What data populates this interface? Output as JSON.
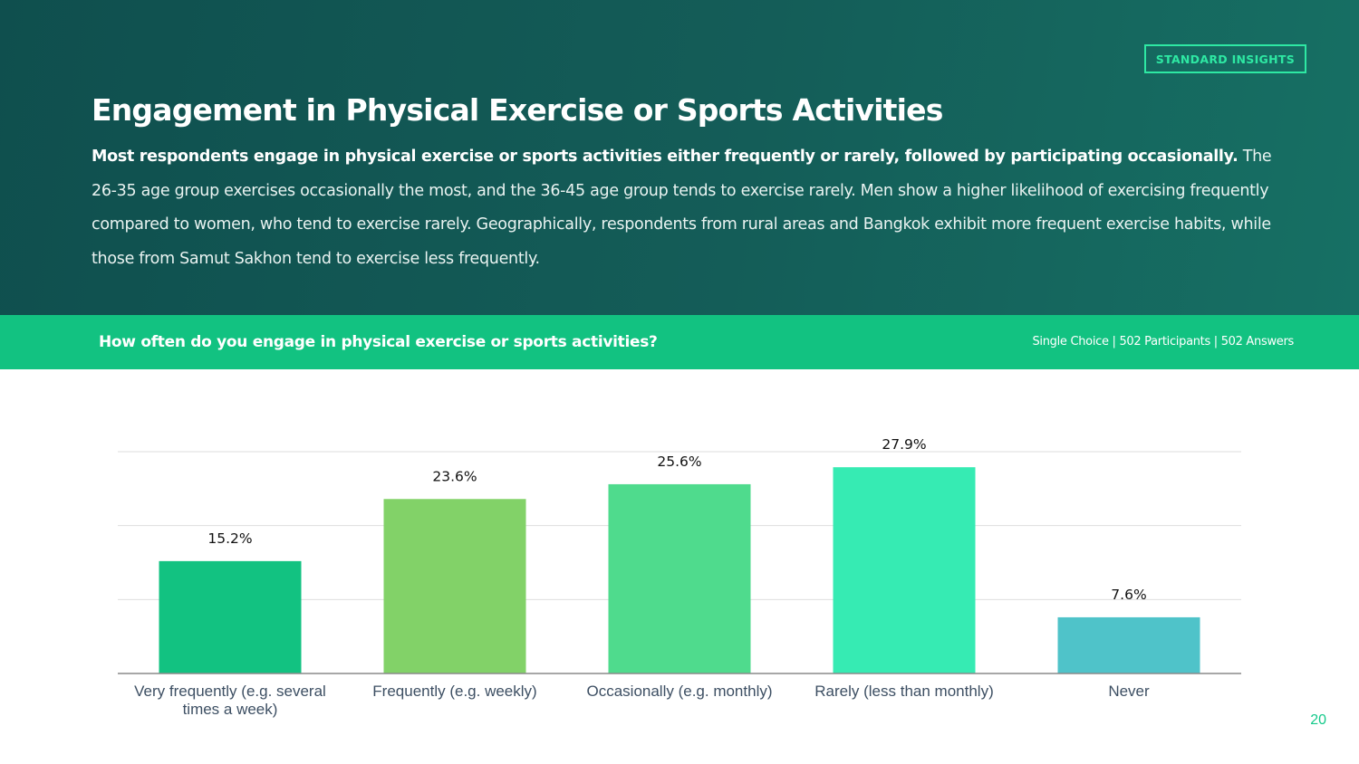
{
  "brand": "STANDARD INSIGHTS",
  "title": "Engagement in Physical Exercise or Sports Activities",
  "summary": {
    "lead": "Most respondents engage in physical exercise or sports activities either frequently or rarely, followed by participating occasionally.",
    "body": " The 26-35 age group exercises occasionally the most, and the 36-45 age group tends to exercise rarely. Men show a higher likelihood of exercising frequently compared to women, who tend to exercise rarely. Geographically, respondents from rural areas and Bangkok exhibit more frequent exercise habits, while those from Samut Sakhon tend to exercise less frequently."
  },
  "question": {
    "text": "How often do you engage in physical exercise or sports activities?",
    "meta": "Single Choice | 502 Participants | 502 Answers"
  },
  "page_number": "20",
  "chart_data": {
    "type": "bar",
    "categories": [
      "Very frequently (e.g. several times a week)",
      "Frequently (e.g. weekly)",
      "Occasionally (e.g. monthly)",
      "Rarely (less than monthly)",
      "Never"
    ],
    "category_lines": [
      [
        "Very frequently (e.g. several",
        "times a week)"
      ],
      [
        "Frequently (e.g. weekly)"
      ],
      [
        "Occasionally (e.g. monthly)"
      ],
      [
        "Rarely (less than monthly)"
      ],
      [
        "Never"
      ]
    ],
    "values": [
      15.2,
      23.6,
      25.6,
      27.9,
      7.6
    ],
    "value_labels": [
      "15.2%",
      "23.6%",
      "25.6%",
      "27.9%",
      "7.6%"
    ],
    "colors": [
      "#12c281",
      "#82d268",
      "#4fdb8d",
      "#36ebb3",
      "#4fc3c9"
    ],
    "ylim": [
      0,
      30
    ],
    "gridlines": [
      10,
      20,
      30
    ],
    "grid": true,
    "legend": "none",
    "axis_label_color": "#3d4f63",
    "value_label_color": "#111111"
  }
}
